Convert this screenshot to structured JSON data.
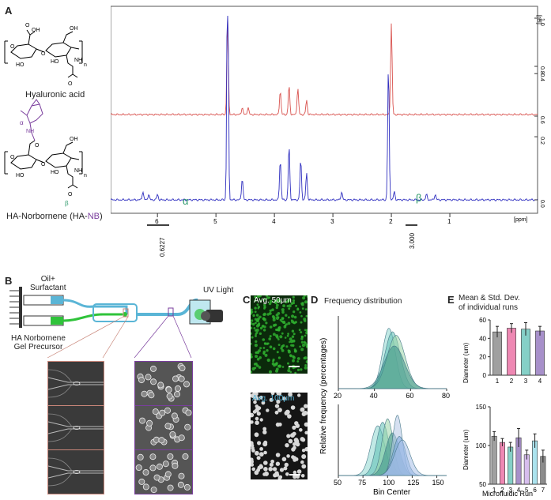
{
  "panels": {
    "a": "A",
    "b": "B",
    "c": "C",
    "d": "D",
    "e": "E"
  },
  "panel_a": {
    "molecule1_label": "Hyaluronic acid",
    "molecule2_label": "HA-Norbornene (HA-",
    "molecule2_label_nb": "NB",
    "molecule2_label_end": ")",
    "alpha": "α",
    "beta": "β",
    "alpha_peak": "α",
    "beta_peak": "β",
    "x_unit": "[ppm]",
    "y_unit": "[rel]",
    "integral_1": "0.6227",
    "integral_2": "3.000",
    "colors": {
      "hyaluronic_acid": "#d9534f",
      "ha_norbornene": "#3030c0",
      "norbornene": "#7a3e9d",
      "beta": "#2e9a6b"
    }
  },
  "panel_b": {
    "oil_label_line1": "Oil+",
    "oil_label_line2": "Surfactant",
    "gel_label_line1": "HA Norbornene",
    "gel_label_line2": "Gel Precursor",
    "uv_label": "UV Light"
  },
  "panel_c": {
    "top_label": "Avg. 50μm",
    "bottom_label": "Avg. 100μm"
  },
  "panel_d": {
    "title": "Frequency distribution",
    "ylabel": "Relative frequency (percentages)",
    "xlabel": "Bin Center"
  },
  "panel_e": {
    "title_line1": "Mean & Std. Dev.",
    "title_line2": "of individual runs",
    "ylabel": "Diameter (um)",
    "xlabel": "Microfluidic Run"
  },
  "chart_data": [
    {
      "type": "line",
      "title": "",
      "xlabel": "[ppm]",
      "ylabel": "[rel]",
      "x_ticks": [
        6,
        5,
        4,
        3,
        2,
        1
      ],
      "y_ticks": [
        1.0,
        0.8,
        0.6,
        0.4,
        0.2,
        0.0
      ],
      "xlim": [
        6.8,
        -0.5
      ],
      "series": [
        {
          "x": [
            4.8,
            4.55,
            4.45,
            3.9,
            3.75,
            3.6,
            3.45,
            2.0
          ],
          "y": [
            1.0,
            0.63,
            0.63,
            0.7,
            0.72,
            0.71,
            0.66,
            0.98
          ]
        },
        {
          "x": [
            6.25,
            6.15,
            6.0,
            4.8,
            4.55,
            3.9,
            3.75,
            3.55,
            3.45,
            2.85,
            2.05,
            1.95,
            1.4,
            1.25
          ],
          "y": [
            0.03,
            0.02,
            0.02,
            1.0,
            0.08,
            0.15,
            0.2,
            0.15,
            0.1,
            0.03,
            0.5,
            0.03,
            0.02,
            0.02
          ]
        }
      ]
    },
    {
      "type": "area",
      "title": "Frequency distribution",
      "xlabel": "Bin Center",
      "ylabel": "Relative frequency (percentages)",
      "subplots": [
        {
          "x_ticks": [
            20,
            40,
            60,
            80
          ],
          "xlim": [
            20,
            80
          ],
          "peaks": [
            48,
            50,
            52,
            51
          ],
          "widths": [
            5,
            6,
            7,
            8
          ],
          "heights": [
            0.85,
            0.8,
            0.75,
            0.6
          ]
        },
        {
          "x_ticks": [
            50,
            75,
            100,
            125,
            150
          ],
          "xlim": [
            50,
            160
          ],
          "peaks": [
            90,
            95,
            100,
            105,
            110,
            112,
            115
          ],
          "widths": [
            10,
            9,
            8,
            10,
            7,
            9,
            11
          ],
          "heights": [
            0.7,
            0.75,
            0.8,
            0.6,
            0.85,
            0.55,
            0.5
          ]
        }
      ]
    },
    {
      "type": "bar",
      "title": "Mean & Std. Dev. of individual runs",
      "xlabel": "Microfluidic Run",
      "ylabel": "Diameter (um)",
      "subplots": [
        {
          "categories": [
            "1",
            "2",
            "3",
            "4"
          ],
          "values": [
            47,
            51,
            50,
            48
          ],
          "errors": [
            6,
            5,
            7,
            5
          ],
          "ylim": [
            0,
            60
          ],
          "y_ticks": [
            0,
            20,
            40,
            60
          ],
          "colors": [
            "#808080",
            "#e8609a",
            "#5cc0b4",
            "#8a6bb8"
          ]
        },
        {
          "categories": [
            "1",
            "2",
            "3",
            "4",
            "5",
            "6",
            "7"
          ],
          "values": [
            112,
            104,
            98,
            110,
            88,
            106,
            86
          ],
          "errors": [
            6,
            5,
            6,
            12,
            6,
            9,
            8
          ],
          "ylim": [
            50,
            150
          ],
          "y_ticks": [
            50,
            100,
            150
          ],
          "colors": [
            "#808080",
            "#e8609a",
            "#5cc0b4",
            "#8a6bb8",
            "#c9a8e8",
            "#8fd9e8",
            "#666666"
          ]
        }
      ]
    }
  ]
}
